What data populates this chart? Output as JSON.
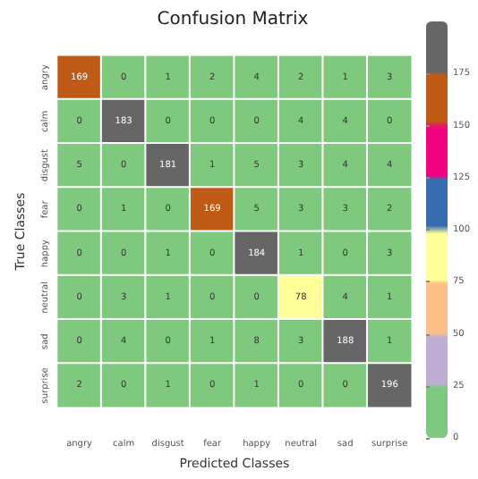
{
  "chart_data": {
    "type": "heatmap",
    "title": "Confusion Matrix",
    "xlabel": "Predicted Classes",
    "ylabel": "True Classes",
    "categories": [
      "angry",
      "calm",
      "disgust",
      "fear",
      "happy",
      "neutral",
      "sad",
      "surprise"
    ],
    "y_categories": [
      "angry",
      "calm",
      "disgust",
      "fear",
      "happy",
      "neutral",
      "sad",
      "surprise"
    ],
    "cells": [
      [
        169,
        0,
        1,
        2,
        4,
        2,
        1,
        3
      ],
      [
        0,
        183,
        0,
        0,
        0,
        4,
        4,
        0
      ],
      [
        5,
        0,
        181,
        1,
        5,
        3,
        4,
        4
      ],
      [
        0,
        1,
        0,
        169,
        5,
        3,
        3,
        2
      ],
      [
        0,
        0,
        1,
        0,
        184,
        1,
        0,
        3
      ],
      [
        0,
        3,
        1,
        0,
        0,
        78,
        4,
        1
      ],
      [
        0,
        4,
        0,
        1,
        8,
        3,
        188,
        1
      ],
      [
        2,
        0,
        1,
        0,
        1,
        0,
        0,
        196
      ]
    ],
    "data_labels": true,
    "clim": [
      0,
      200
    ],
    "cticks": [
      0,
      25,
      50,
      75,
      100,
      125,
      150,
      175
    ]
  }
}
